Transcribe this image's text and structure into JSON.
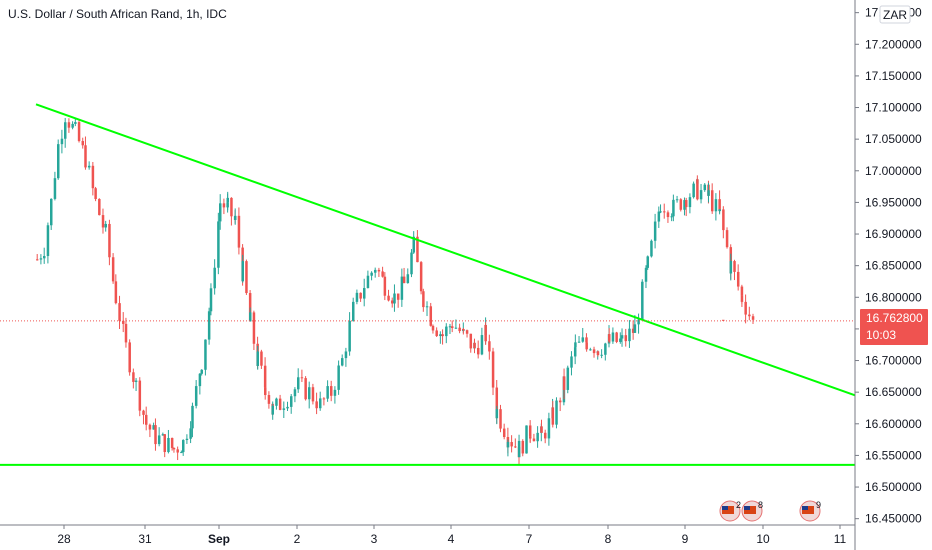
{
  "header": {
    "title": "U.S. Dollar / South African Rand, 1h, IDC"
  },
  "price_scale": {
    "currency": "ZAR",
    "current_price": "16.762800",
    "countdown": "10:03",
    "ticks": [
      "16.450000",
      "16.500000",
      "16.550000",
      "16.600000",
      "16.650000",
      "16.700000",
      "16.750000",
      "16.800000",
      "16.850000",
      "16.900000",
      "16.950000",
      "17.000000",
      "17.050000",
      "17.100000",
      "17.150000",
      "17.200000",
      "17.250000"
    ]
  },
  "time_scale": {
    "labels": [
      {
        "text": "28",
        "bold": false
      },
      {
        "text": "31",
        "bold": false
      },
      {
        "text": "Sep",
        "bold": true
      },
      {
        "text": "2",
        "bold": false
      },
      {
        "text": "3",
        "bold": false
      },
      {
        "text": "4",
        "bold": false
      },
      {
        "text": "7",
        "bold": false
      },
      {
        "text": "8",
        "bold": false
      },
      {
        "text": "9",
        "bold": false
      },
      {
        "text": "10",
        "bold": false
      },
      {
        "text": "11",
        "bold": false
      }
    ]
  },
  "events": [
    {
      "flag": "us-flag-icon",
      "label": "2"
    },
    {
      "flag": "us-flag-icon",
      "label": "8"
    },
    {
      "flag": "us-flag-icon",
      "label": "9"
    }
  ],
  "colors": {
    "up": "#26a69a",
    "down": "#ef5350",
    "trendline": "#00ff00",
    "price_badge": "#ef5350"
  },
  "chart_data": {
    "type": "candlestick",
    "title": "U.S. Dollar / South African Rand, 1h, IDC",
    "ylim": [
      16.44,
      17.27
    ],
    "x_categories": [
      "28",
      "31",
      "Sep",
      "2",
      "3",
      "4",
      "7",
      "8",
      "9",
      "10",
      "11"
    ],
    "path": [
      [
        "27",
        16.86
      ],
      [
        "27",
        16.88
      ],
      [
        "27",
        16.95
      ],
      [
        "27",
        17.04
      ],
      [
        "28",
        17.09
      ],
      [
        "28",
        17.06
      ],
      [
        "28",
        17.02
      ],
      [
        "28",
        16.95
      ],
      [
        "28",
        16.9
      ],
      [
        "28",
        16.8
      ],
      [
        "28",
        16.72
      ],
      [
        "28",
        16.66
      ],
      [
        "31",
        16.6
      ],
      [
        "31",
        16.58
      ],
      [
        "31",
        16.57
      ],
      [
        "31",
        16.56
      ],
      [
        "31",
        16.57
      ],
      [
        "31",
        16.62
      ],
      [
        "31",
        16.7
      ],
      [
        "31",
        16.8
      ],
      [
        "Sep",
        16.95
      ],
      [
        "Sep",
        16.94
      ],
      [
        "Sep",
        16.92
      ],
      [
        "Sep",
        16.84
      ],
      [
        "Sep",
        16.76
      ],
      [
        "Sep",
        16.7
      ],
      [
        "Sep",
        16.66
      ],
      [
        "Sep",
        16.62
      ],
      [
        "2",
        16.66
      ],
      [
        "2",
        16.65
      ],
      [
        "2",
        16.63
      ],
      [
        "2",
        16.65
      ],
      [
        "2",
        16.7
      ],
      [
        "2",
        16.78
      ],
      [
        "2",
        16.82
      ],
      [
        "3",
        16.85
      ],
      [
        "3",
        16.82
      ],
      [
        "3",
        16.8
      ],
      [
        "3",
        16.82
      ],
      [
        "3",
        16.88
      ],
      [
        "3",
        16.8
      ],
      [
        "3",
        16.76
      ],
      [
        "3",
        16.74
      ],
      [
        "4",
        16.76
      ],
      [
        "4",
        16.74
      ],
      [
        "4",
        16.72
      ],
      [
        "4",
        16.74
      ],
      [
        "4",
        16.62
      ],
      [
        "4",
        16.58
      ],
      [
        "4",
        16.56
      ],
      [
        "7",
        16.59
      ],
      [
        "7",
        16.58
      ],
      [
        "7",
        16.61
      ],
      [
        "7",
        16.66
      ],
      [
        "7",
        16.72
      ],
      [
        "7",
        16.73
      ],
      [
        "7",
        16.72
      ],
      [
        "8",
        16.73
      ],
      [
        "8",
        16.73
      ],
      [
        "8",
        16.75
      ],
      [
        "8",
        16.85
      ],
      [
        "8",
        16.95
      ],
      [
        "8",
        16.94
      ],
      [
        "9",
        16.96
      ],
      [
        "9",
        16.97
      ],
      [
        "9",
        16.96
      ],
      [
        "9",
        16.93
      ],
      [
        "9",
        16.85
      ],
      [
        "9",
        16.8
      ],
      [
        "9",
        16.76
      ]
    ],
    "trendlines": [
      {
        "points": [
          [
            "27",
            17.105
          ],
          [
            "11",
            16.645
          ]
        ]
      },
      {
        "points": [
          [
            "27",
            16.535
          ],
          [
            "11",
            16.535
          ]
        ]
      }
    ],
    "last_price": 16.7628
  }
}
